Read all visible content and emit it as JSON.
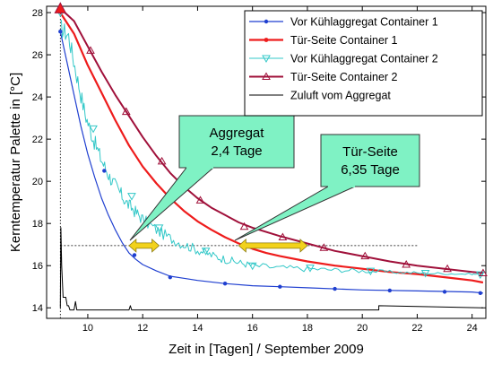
{
  "chart_data": {
    "type": "line",
    "title": "",
    "xlabel": "Zeit in [Tagen] / September 2009",
    "ylabel": "Kerntemperatur Palette in [°C]",
    "xlim": [
      8.5,
      24.5
    ],
    "ylim": [
      13.5,
      28.3
    ],
    "xticks": [
      10,
      12,
      14,
      16,
      18,
      20,
      22,
      24
    ],
    "yticks": [
      14,
      16,
      18,
      20,
      22,
      24,
      26,
      28
    ],
    "grid": false,
    "legend_position": "top-right",
    "series": [
      {
        "name": "Vor Kühlaggregat Container 1",
        "color": "#1f3fd0",
        "marker": "dot",
        "x": [
          9.0,
          9.25,
          9.5,
          9.75,
          10.0,
          10.25,
          10.5,
          10.75,
          11.0,
          11.25,
          11.5,
          11.75,
          12.0,
          12.5,
          13.0,
          13.5,
          14.0,
          15.0,
          16.0,
          17.0,
          18.0,
          20.0,
          22.0,
          24.0,
          24.4
        ],
        "y": [
          27.1,
          25.6,
          24.1,
          22.6,
          21.3,
          20.2,
          19.2,
          18.4,
          17.7,
          17.1,
          16.6,
          16.3,
          16.05,
          15.75,
          15.5,
          15.4,
          15.3,
          15.15,
          15.05,
          15.0,
          14.95,
          14.85,
          14.8,
          14.75,
          14.7
        ],
        "marker_x": [
          9.0,
          10.6,
          11.7,
          13.0,
          15.0,
          17.0,
          19.0,
          21.0,
          23.0,
          24.3
        ],
        "marker_y": [
          27.1,
          20.5,
          16.5,
          15.45,
          15.15,
          15.0,
          14.9,
          14.82,
          14.76,
          14.7
        ]
      },
      {
        "name": "Tür-Seite Container 1",
        "color": "#ee1c1c",
        "marker": "star",
        "x": [
          9.0,
          9.5,
          10.0,
          10.5,
          11.0,
          11.5,
          12.0,
          12.5,
          13.0,
          13.5,
          14.0,
          14.5,
          15.0,
          15.5,
          16.0,
          16.5,
          17.0,
          18.0,
          19.0,
          20.0,
          21.0,
          22.0,
          23.0,
          24.0,
          24.4
        ],
        "y": [
          28.0,
          27.0,
          25.5,
          24.2,
          22.9,
          21.7,
          20.7,
          19.9,
          19.2,
          18.6,
          18.1,
          17.7,
          17.35,
          17.05,
          16.8,
          16.6,
          16.45,
          16.2,
          16.0,
          15.85,
          15.7,
          15.6,
          15.45,
          15.3,
          15.2
        ]
      },
      {
        "name": "Vor Kühlaggregat Container 2",
        "color": "#33c8c8",
        "marker": "triangle-down",
        "x": [
          9.0,
          9.3,
          9.6,
          9.9,
          10.2,
          10.5,
          10.8,
          11.1,
          11.4,
          11.7,
          12.0,
          12.5,
          13.0,
          13.5,
          14.0,
          14.5,
          15.0,
          15.5,
          16.0,
          17.0,
          18.0,
          19.0,
          20.0,
          21.0,
          22.0,
          23.0,
          24.0,
          24.4
        ],
        "y": [
          27.3,
          26.9,
          25.0,
          23.2,
          22.0,
          21.0,
          20.2,
          19.6,
          19.0,
          18.6,
          18.2,
          17.7,
          17.3,
          17.0,
          16.75,
          16.5,
          16.3,
          16.15,
          16.0,
          15.9,
          15.85,
          15.8,
          15.75,
          15.7,
          15.65,
          15.62,
          15.6,
          15.58
        ],
        "marker_x": [
          9.0,
          10.2,
          11.6,
          12.6,
          14.3,
          16.0,
          18.1,
          20.3,
          22.3,
          24.3
        ],
        "marker_y": [
          28.0,
          22.5,
          19.3,
          17.8,
          16.7,
          16.0,
          15.9,
          15.75,
          15.65,
          15.58
        ]
      },
      {
        "name": "Tür-Seite Container 2",
        "color": "#a0103a",
        "marker": "triangle-up",
        "x": [
          9.0,
          9.5,
          10.0,
          10.5,
          11.0,
          11.5,
          12.0,
          12.5,
          13.0,
          13.5,
          14.0,
          14.5,
          15.0,
          15.5,
          16.0,
          17.0,
          18.0,
          19.0,
          20.0,
          21.0,
          22.0,
          23.0,
          24.0,
          24.4
        ],
        "y": [
          28.2,
          27.6,
          26.4,
          25.2,
          24.1,
          23.1,
          22.1,
          21.2,
          20.4,
          19.75,
          19.2,
          18.75,
          18.4,
          18.05,
          17.8,
          17.4,
          17.05,
          16.7,
          16.45,
          16.2,
          16.0,
          15.85,
          15.7,
          15.65
        ],
        "marker_x": [
          9.0,
          10.1,
          11.4,
          12.7,
          14.1,
          15.7,
          17.1,
          18.6,
          20.1,
          21.6,
          23.1,
          24.4
        ],
        "marker_y": [
          28.2,
          26.2,
          23.3,
          20.95,
          19.1,
          17.85,
          17.35,
          16.85,
          16.45,
          16.05,
          15.85,
          15.65
        ]
      },
      {
        "name": "Zuluft vom Aggregat",
        "color": "#000000",
        "marker": "none",
        "x": [
          9.0,
          9.02,
          9.05,
          9.1,
          9.2,
          9.25,
          9.3,
          9.35,
          9.5,
          9.55,
          9.6,
          9.7,
          11.5,
          11.55,
          11.6,
          20.6,
          20.6,
          24.4
        ],
        "y": [
          14.0,
          17.8,
          16.0,
          14.5,
          14.5,
          14.1,
          14.1,
          13.9,
          13.9,
          14.3,
          13.9,
          13.9,
          13.9,
          14.1,
          13.9,
          13.9,
          14.1,
          14.0
        ]
      }
    ],
    "threshold_y": 16.95,
    "annotations": [
      {
        "line1": "Aggregat",
        "line2": "2,4 Tage",
        "arrow_x": [
          11.5,
          12.6
        ],
        "arrow_y": 16.95
      },
      {
        "line1": "Tür-Seite",
        "line2": "6,35 Tage",
        "arrow_x": [
          15.5,
          18.0
        ],
        "arrow_y": 16.95
      }
    ]
  }
}
